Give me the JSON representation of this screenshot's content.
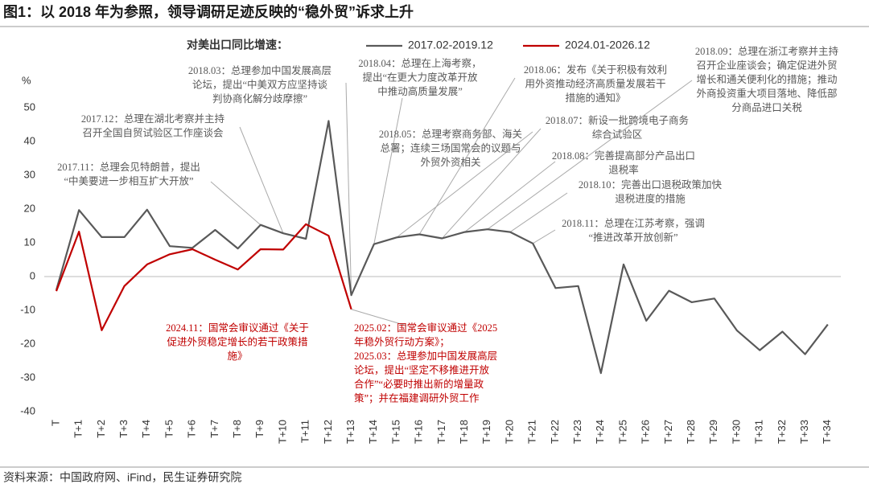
{
  "chart_data": {
    "type": "line",
    "title": "图1：以 2018 年为参照，领导调研足迹反映的“稳外贸”诉求上升",
    "legend_title": "对美出口同比增速：",
    "y_label": "%",
    "source": "资料来源：中国政府网、iFind，民生证券研究院",
    "categories": [
      "T",
      "T+1",
      "T+2",
      "T+3",
      "T+4",
      "T+5",
      "T+6",
      "T+7",
      "T+8",
      "T+9",
      "T+10",
      "T+11",
      "T+12",
      "T+13",
      "T+14",
      "T+15",
      "T+16",
      "T+17",
      "T+18",
      "T+19",
      "T+20",
      "T+21",
      "T+22",
      "T+23",
      "T+24",
      "T+25",
      "T+26",
      "T+27",
      "T+28",
      "T+29",
      "T+30",
      "T+31",
      "T+32",
      "T+33",
      "T+34"
    ],
    "series": [
      {
        "name": "2017.02-2019.12",
        "color": "#595959",
        "values": [
          -4,
          19.7,
          11.7,
          11.7,
          19.8,
          9,
          8.5,
          13.8,
          8.3,
          15.3,
          12.8,
          11.2,
          46.1,
          -5.5,
          9.6,
          11.6,
          12.5,
          11.3,
          13.2,
          14,
          13.2,
          9.8,
          -3.4,
          -2.8,
          -28.6,
          3.6,
          -13.1,
          -4.2,
          -7.6,
          -6.5,
          -16,
          -21.8,
          -16.3,
          -23,
          -14.2
        ]
      },
      {
        "name": "2024.01-2026.12",
        "color": "#c00000",
        "values": [
          -4.3,
          13.3,
          -15.9,
          -2.8,
          3.6,
          6.6,
          8.1,
          5,
          2.1,
          8.1,
          8,
          15.5,
          12.1,
          -9.7,
          null,
          null,
          null,
          null,
          null,
          null,
          null,
          null,
          null,
          null,
          null,
          null,
          null,
          null,
          null,
          null,
          null,
          null,
          null,
          null,
          null
        ]
      }
    ],
    "ylim": [
      -40,
      50
    ],
    "yticks": [
      -40,
      -30,
      -20,
      -10,
      0,
      10,
      20,
      30,
      40,
      50
    ],
    "grid": false,
    "annotations": [
      {
        "color": "#595959",
        "lines": [
          "2018.03：总理参加中国发展高层",
          "论坛，提出“中美双方应坚持谈",
          "判协商化解分歧摩擦”"
        ]
      },
      {
        "color": "#595959",
        "lines": [
          "2017.12：总理在湖北考察并主持",
          "召开全国自贸试验区工作座谈会"
        ]
      },
      {
        "color": "#595959",
        "lines": [
          "2017.11：总理会见特朗普，提出",
          "“中美要进一步相互扩大开放”"
        ]
      },
      {
        "color": "#595959",
        "lines": [
          "2018.04：总理在上海考察，",
          "提出“在更大力度改革开放",
          "中推动高质量发展”"
        ]
      },
      {
        "color": "#595959",
        "lines": [
          "2018.05：总理考察商务部、海关",
          "总署；连续三场国常会的议题与",
          "外贸外资相关"
        ]
      },
      {
        "color": "#595959",
        "lines": [
          "2018.06：发布《关于积极有效利",
          "用外资推动经济高质量发展若干",
          "措施的通知》"
        ]
      },
      {
        "color": "#595959",
        "lines": [
          "2018.07：新设一批跨境电子商务",
          "综合试验区"
        ]
      },
      {
        "color": "#595959",
        "lines": [
          "2018.08：完善提高部分产品出口",
          "退税率"
        ]
      },
      {
        "color": "#595959",
        "lines": [
          "2018.09：总理在浙江考察并主持",
          "召开企业座谈会；确定促进外贸",
          "增长和通关便利化的措施；推动",
          "外商投资重大项目落地、降低部",
          "分商品进口关税"
        ]
      },
      {
        "color": "#595959",
        "lines": [
          "2018.10：完善出口退税政策加快",
          "退税进度的措施"
        ]
      },
      {
        "color": "#595959",
        "lines": [
          "2018.11：总理在江苏考察，强调",
          "“推进改革开放创新”"
        ]
      },
      {
        "color": "#c00000",
        "lines": [
          "2024.11：国常会审议通过《关于",
          "促进外贸稳定增长的若干政策措",
          "施》"
        ]
      },
      {
        "color": "#c00000",
        "lines": [
          "2025.02：国常会审议通过《2025",
          "年稳外贸行动方案》；",
          "2025.03：总理参加中国发展高层",
          "论坛，提出“坚定不移推进开放",
          "合作”“必要时推出新的增量政",
          "策”；并在福建调研外贸工作"
        ]
      }
    ]
  }
}
